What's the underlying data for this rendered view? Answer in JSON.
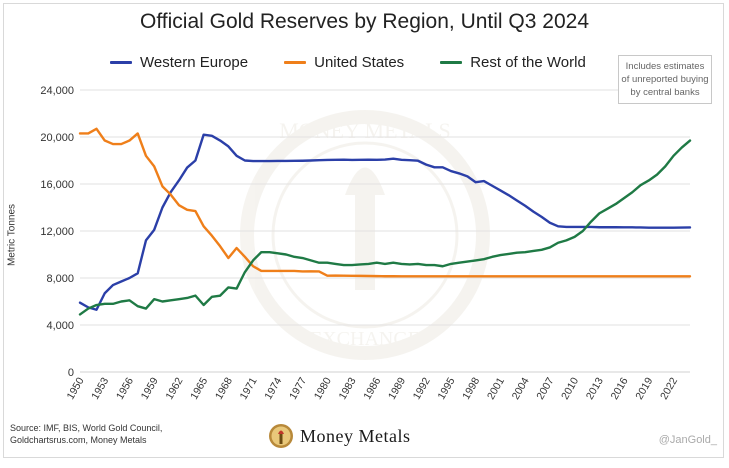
{
  "source_text": "Source: IMF, BIS, World Gold Council, Goldchartsrus.com, Money Metals",
  "handle": "@JanGold_",
  "logo_text": "Money Metals",
  "note": "Includes estimates of unreported buying by central banks",
  "watermark_top": "MONEY METALS",
  "watermark_bottom": "EXCHANGE",
  "colors": {
    "western_europe": "#2b3fa8",
    "united_states": "#ef7f1a",
    "rest_of_world": "#1f7a45",
    "grid": "#e2e2e2"
  },
  "chart_data": {
    "type": "line",
    "title": "Official Gold Reserves by Region, Until Q3 2024",
    "ylabel": "Metric Tonnes",
    "xlabel": "",
    "ylim": [
      0,
      24000
    ],
    "yticks": [
      0,
      4000,
      8000,
      12000,
      16000,
      20000,
      24000
    ],
    "ytick_labels": [
      "0",
      "4,000",
      "8,000",
      "12,000",
      "16,000",
      "20,000",
      "24,000"
    ],
    "xlim": [
      1950,
      2024
    ],
    "xticks": [
      1950,
      1953,
      1956,
      1959,
      1962,
      1965,
      1968,
      1971,
      1974,
      1977,
      1980,
      1983,
      1986,
      1989,
      1992,
      1995,
      1998,
      2001,
      2004,
      2007,
      2010,
      2013,
      2016,
      2019,
      2022
    ],
    "grid": "horizontal",
    "legend": "top",
    "x": [
      1950,
      1951,
      1952,
      1953,
      1954,
      1955,
      1956,
      1957,
      1958,
      1959,
      1960,
      1961,
      1962,
      1963,
      1964,
      1965,
      1966,
      1967,
      1968,
      1969,
      1970,
      1971,
      1972,
      1973,
      1974,
      1975,
      1976,
      1977,
      1978,
      1979,
      1980,
      1981,
      1982,
      1983,
      1984,
      1985,
      1986,
      1987,
      1988,
      1989,
      1990,
      1991,
      1992,
      1993,
      1994,
      1995,
      1996,
      1997,
      1998,
      1999,
      2000,
      2001,
      2002,
      2003,
      2004,
      2005,
      2006,
      2007,
      2008,
      2009,
      2010,
      2011,
      2012,
      2013,
      2014,
      2015,
      2016,
      2017,
      2018,
      2019,
      2020,
      2021,
      2022,
      2023,
      2024
    ],
    "series": [
      {
        "name": "Western Europe",
        "values": [
          5900,
          5500,
          5300,
          6700,
          7400,
          7700,
          8000,
          8400,
          11200,
          12100,
          14000,
          15300,
          16300,
          17400,
          18000,
          20200,
          20100,
          19700,
          19200,
          18400,
          18000,
          17950,
          17950,
          17950,
          17960,
          17960,
          17970,
          17980,
          18000,
          18030,
          18050,
          18060,
          18070,
          18050,
          18060,
          18070,
          18060,
          18080,
          18150,
          18060,
          18030,
          17980,
          17650,
          17420,
          17420,
          17100,
          16900,
          16650,
          16150,
          16250,
          15850,
          15450,
          15050,
          14600,
          14150,
          13650,
          13200,
          12700,
          12400,
          12350,
          12350,
          12350,
          12350,
          12320,
          12320,
          12320,
          12310,
          12310,
          12300,
          12280,
          12280,
          12280,
          12280,
          12290,
          12300
        ]
      },
      {
        "name": "United States",
        "values": [
          20300,
          20300,
          20700,
          19700,
          19400,
          19400,
          19700,
          20300,
          18400,
          17500,
          15800,
          15100,
          14200,
          13800,
          13700,
          12400,
          11600,
          10700,
          9700,
          10550,
          9800,
          9000,
          8600,
          8600,
          8600,
          8600,
          8600,
          8560,
          8570,
          8560,
          8200,
          8210,
          8200,
          8190,
          8180,
          8170,
          8160,
          8150,
          8150,
          8140,
          8140,
          8140,
          8140,
          8140,
          8140,
          8140,
          8140,
          8140,
          8140,
          8140,
          8140,
          8140,
          8140,
          8140,
          8140,
          8140,
          8140,
          8140,
          8140,
          8140,
          8140,
          8140,
          8140,
          8140,
          8140,
          8140,
          8140,
          8140,
          8140,
          8140,
          8140,
          8140,
          8140,
          8140,
          8140
        ]
      },
      {
        "name": "Rest of the World",
        "values": [
          4900,
          5400,
          5700,
          5800,
          5800,
          6000,
          6100,
          5600,
          5400,
          6200,
          6000,
          6100,
          6200,
          6300,
          6500,
          5700,
          6400,
          6500,
          7200,
          7100,
          8500,
          9500,
          10200,
          10200,
          10100,
          10000,
          9800,
          9700,
          9500,
          9300,
          9300,
          9200,
          9100,
          9100,
          9150,
          9200,
          9300,
          9200,
          9300,
          9200,
          9150,
          9200,
          9100,
          9100,
          9000,
          9200,
          9300,
          9400,
          9500,
          9600,
          9800,
          9950,
          10050,
          10150,
          10200,
          10300,
          10400,
          10600,
          11000,
          11200,
          11500,
          12000,
          12800,
          13500,
          13900,
          14300,
          14800,
          15300,
          15900,
          16300,
          16800,
          17500,
          18400,
          19100,
          19700
        ]
      }
    ]
  }
}
